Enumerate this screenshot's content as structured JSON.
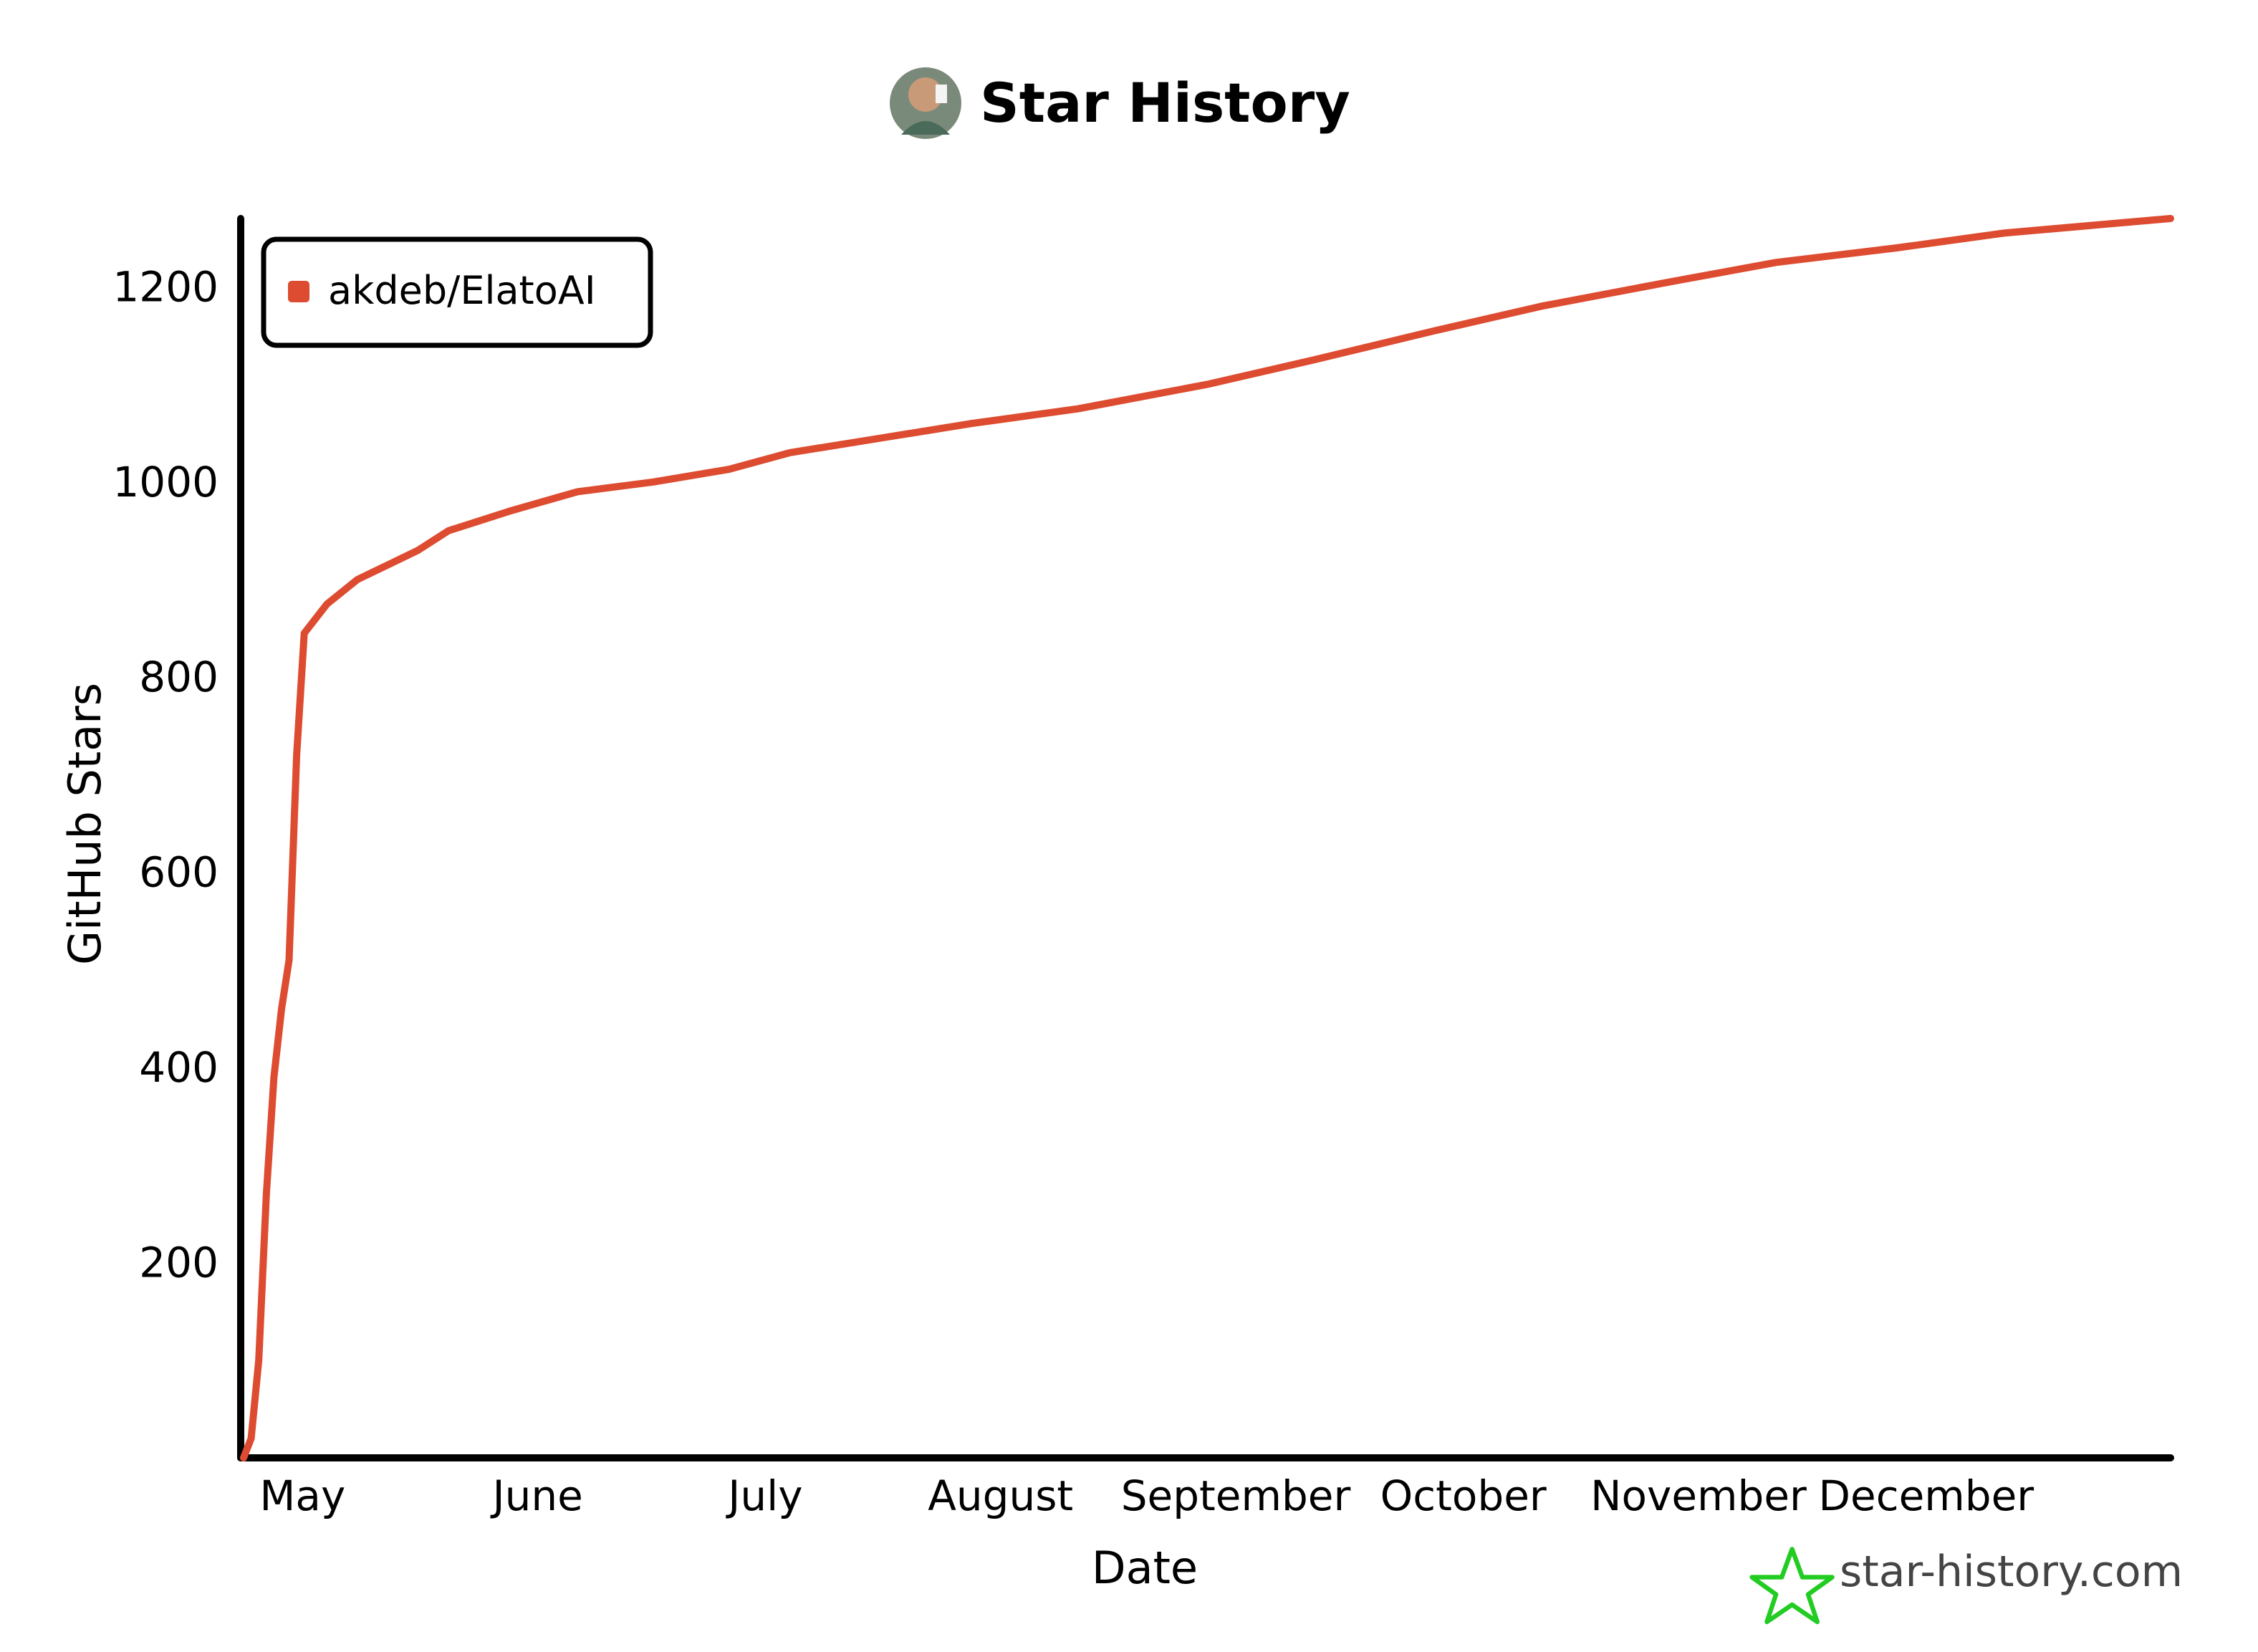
{
  "title": "Star History",
  "brand": {
    "text": "star-history.com",
    "icon": "star-history-logo-icon",
    "icon_color": "#22cc22"
  },
  "avatar": {
    "icon": "avatar-icon"
  },
  "colors": {
    "series": "#dd4b30",
    "axis": "#000000",
    "text": "#000000"
  },
  "chart_data": {
    "type": "line",
    "title": "Star History",
    "xlabel": "Date",
    "ylabel": "GitHub Stars",
    "x_tick_labels": [
      "May",
      "June",
      "July",
      "August",
      "September",
      "October",
      "November",
      "December"
    ],
    "y_tick_labels": [
      "200",
      "400",
      "600",
      "800",
      "1000",
      "1200"
    ],
    "y_ticks": [
      200,
      400,
      600,
      800,
      1000,
      1200
    ],
    "ylim": [
      0,
      1270
    ],
    "xlim": [
      "2024-04-27",
      "2025-01-06"
    ],
    "legend": "top-left",
    "grid": false,
    "series": [
      {
        "name": "akdeb/ElatoAI",
        "points": [
          [
            "2024-04-27",
            0
          ],
          [
            "2024-04-28",
            20
          ],
          [
            "2024-04-29",
            100
          ],
          [
            "2024-04-30",
            270
          ],
          [
            "2024-05-01",
            390
          ],
          [
            "2024-05-02",
            460
          ],
          [
            "2024-05-03",
            510
          ],
          [
            "2024-05-04",
            720
          ],
          [
            "2024-05-05",
            845
          ],
          [
            "2024-05-08",
            875
          ],
          [
            "2024-05-12",
            900
          ],
          [
            "2024-05-16",
            915
          ],
          [
            "2024-05-20",
            930
          ],
          [
            "2024-05-24",
            950
          ],
          [
            "2024-06-01",
            970
          ],
          [
            "2024-06-10",
            990
          ],
          [
            "2024-06-20",
            1000
          ],
          [
            "2024-06-30",
            1013
          ],
          [
            "2024-07-08",
            1030
          ],
          [
            "2024-07-20",
            1045
          ],
          [
            "2024-08-01",
            1060
          ],
          [
            "2024-08-15",
            1075
          ],
          [
            "2024-09-01",
            1100
          ],
          [
            "2024-09-15",
            1125
          ],
          [
            "2024-10-01",
            1155
          ],
          [
            "2024-10-15",
            1180
          ],
          [
            "2024-11-01",
            1205
          ],
          [
            "2024-11-15",
            1225
          ],
          [
            "2024-12-01",
            1240
          ],
          [
            "2024-12-15",
            1255
          ],
          [
            "2025-01-06",
            1270
          ]
        ]
      }
    ]
  }
}
